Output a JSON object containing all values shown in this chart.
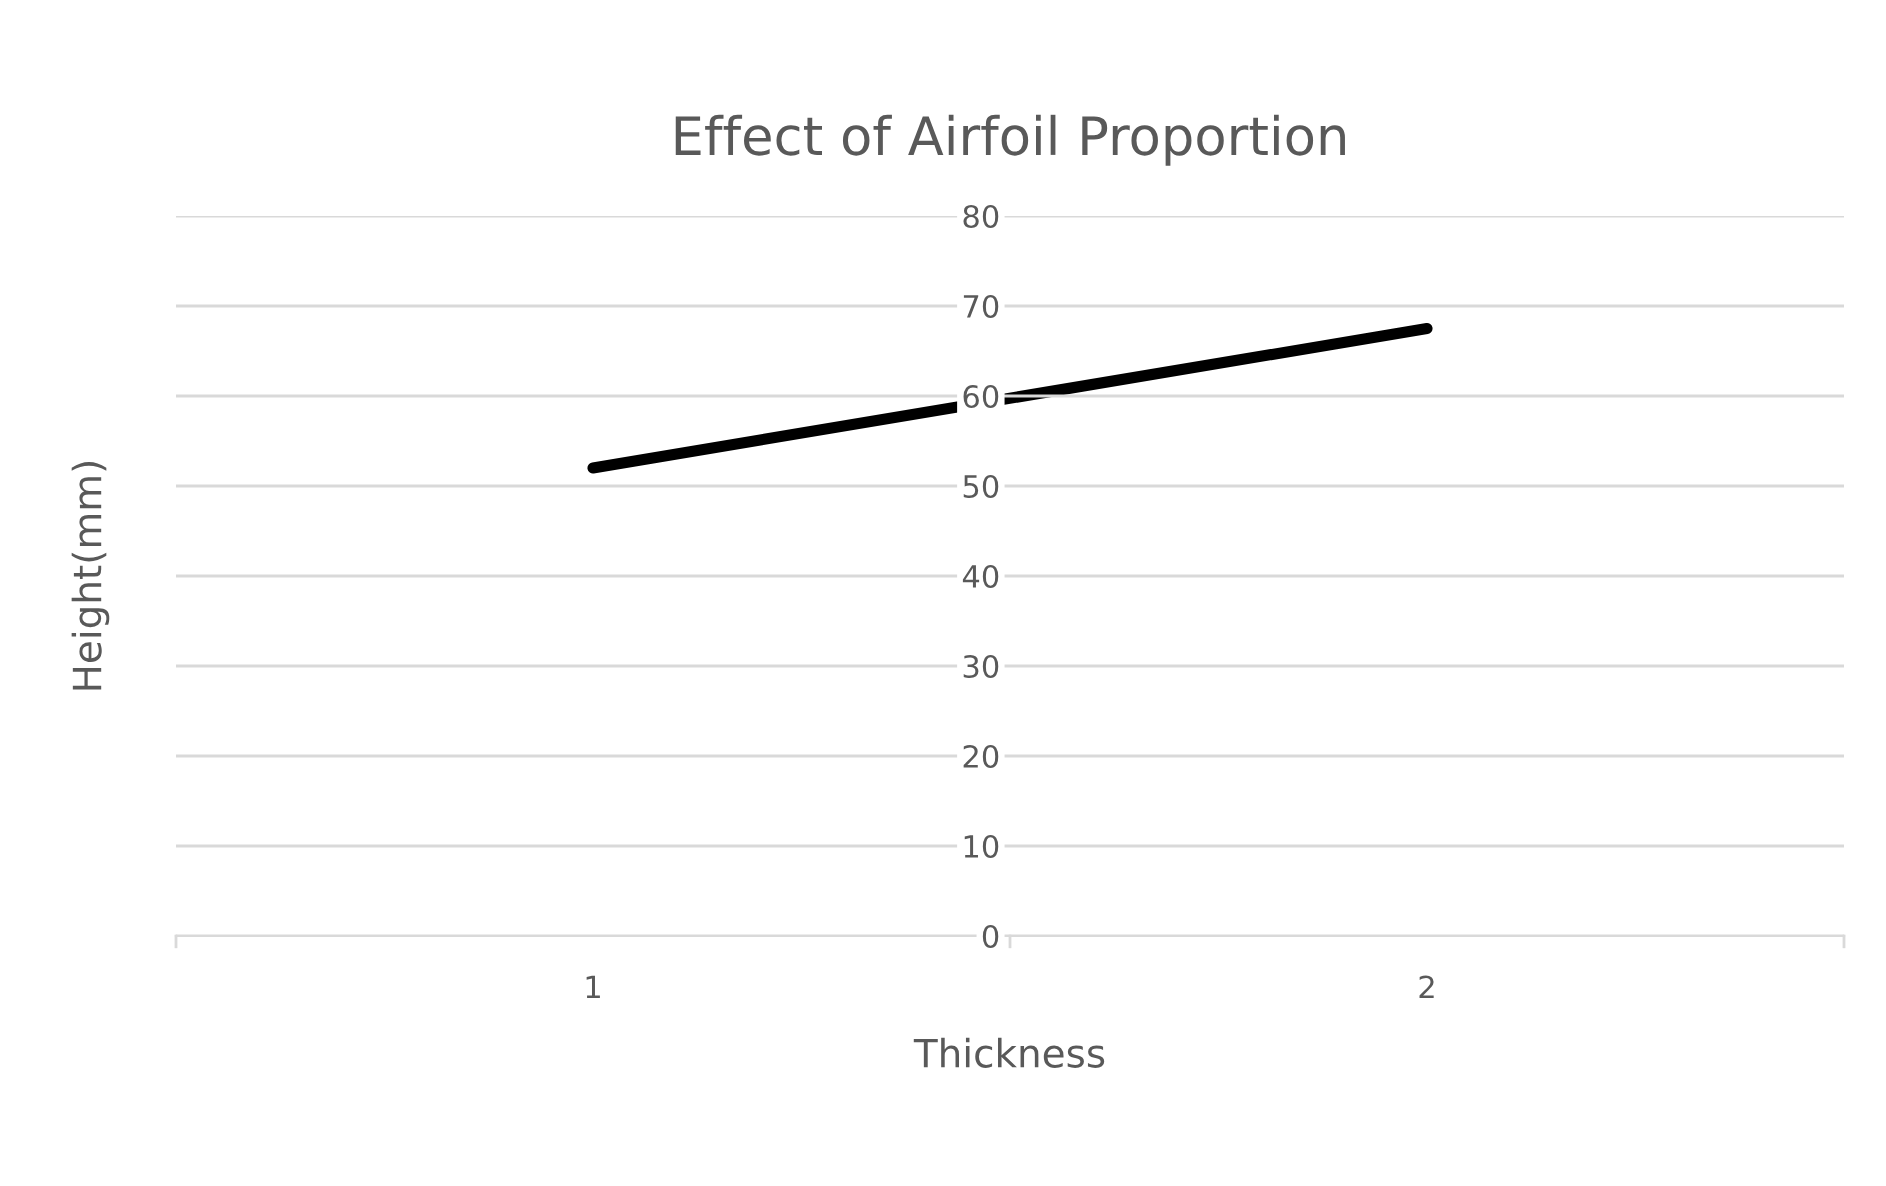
{
  "chart_data": {
    "type": "line",
    "title": "Effect of Airfoil Proportion",
    "xlabel": "Thickness",
    "ylabel": "Height(mm)",
    "categories": [
      "1",
      "2"
    ],
    "series": [
      {
        "color": "#000000",
        "values": [
          52,
          67.5
        ]
      }
    ],
    "ylim": [
      0,
      80
    ],
    "yticks": [
      0,
      10,
      20,
      30,
      40,
      50,
      60,
      70,
      80
    ],
    "grid": "y",
    "legend": false,
    "marker": "none",
    "line_style": "solid"
  }
}
